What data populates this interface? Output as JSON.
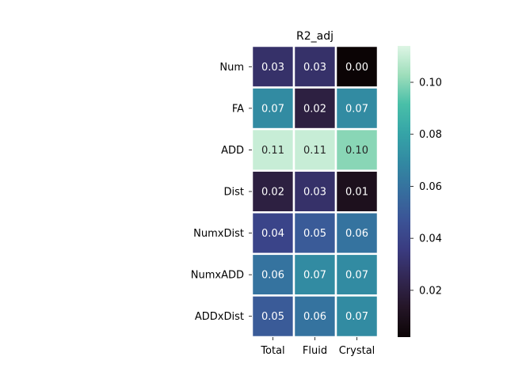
{
  "chart_data": {
    "type": "heatmap",
    "title": "R2_adj",
    "xlabel": "",
    "ylabel": "",
    "x_categories": [
      "Total",
      "Fluid",
      "Crystal"
    ],
    "y_categories": [
      "Num",
      "FA",
      "ADD",
      "Dist",
      "NumxDist",
      "NumxADD",
      "ADDxDist"
    ],
    "values": [
      [
        0.03,
        0.03,
        0.0
      ],
      [
        0.07,
        0.02,
        0.07
      ],
      [
        0.11,
        0.11,
        0.1
      ],
      [
        0.02,
        0.03,
        0.01
      ],
      [
        0.04,
        0.05,
        0.06
      ],
      [
        0.06,
        0.07,
        0.07
      ],
      [
        0.05,
        0.06,
        0.07
      ]
    ],
    "cell_labels": [
      [
        "0.03",
        "0.03",
        "0.00"
      ],
      [
        "0.07",
        "0.02",
        "0.07"
      ],
      [
        "0.11",
        "0.11",
        "0.10"
      ],
      [
        "0.02",
        "0.03",
        "0.01"
      ],
      [
        "0.04",
        "0.05",
        "0.06"
      ],
      [
        "0.06",
        "0.07",
        "0.07"
      ],
      [
        "0.05",
        "0.06",
        "0.07"
      ]
    ],
    "colormap": "mako",
    "colorbar": {
      "range": [
        0.002,
        0.114
      ],
      "ticks": [
        0.02,
        0.04,
        0.06,
        0.08,
        0.1
      ],
      "tick_labels": [
        "0.02",
        "0.04",
        "0.06",
        "0.08",
        "0.10"
      ]
    },
    "colors": {
      "text_light": "#ffffff",
      "text_dark": "#262626",
      "cell_border": "#ffffff"
    }
  }
}
